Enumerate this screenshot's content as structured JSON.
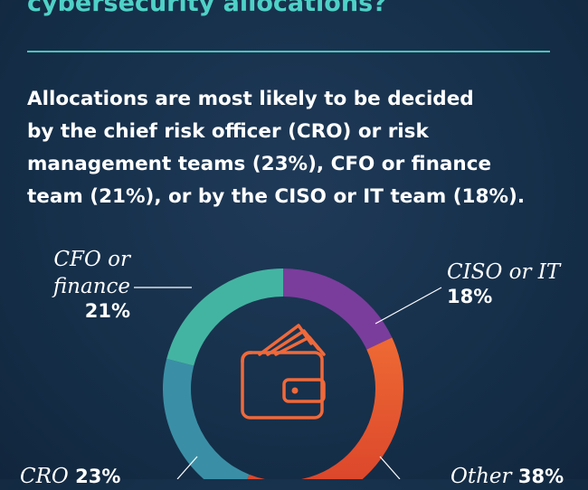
{
  "header": {
    "title": "cybersecurity allocations?",
    "subtitle_lines": [
      "Allocations are most likely to be decided",
      "by the chief risk officer (CRO) or risk",
      "management teams (23%), CFO or finance",
      "team (21%), or by the CISO or IT team (18%)."
    ]
  },
  "chart_data": {
    "type": "pie",
    "variant": "donut",
    "center_icon": "wallet-with-cash-icon",
    "slices": [
      {
        "label": "CISO or IT",
        "value": 18,
        "display": "18%",
        "color": "#7a3d9c"
      },
      {
        "label": "Other",
        "value": 38,
        "display": "38%",
        "color": "#e8542c"
      },
      {
        "label": "CRO",
        "value": 23,
        "display": "23%",
        "color": "#3a8fa6"
      },
      {
        "label": "CFO or finance",
        "value": 21,
        "display": "21%",
        "color": "#44b4a2"
      }
    ],
    "callouts": {
      "cfo": {
        "line1": "CFO or",
        "line2": "finance",
        "pct": "21%"
      },
      "ciso": {
        "label": "CISO or IT",
        "pct": "18%"
      },
      "cro": {
        "label": "CRO ",
        "pct": "23%"
      },
      "other": {
        "label": "Other ",
        "pct": "38%"
      }
    }
  }
}
